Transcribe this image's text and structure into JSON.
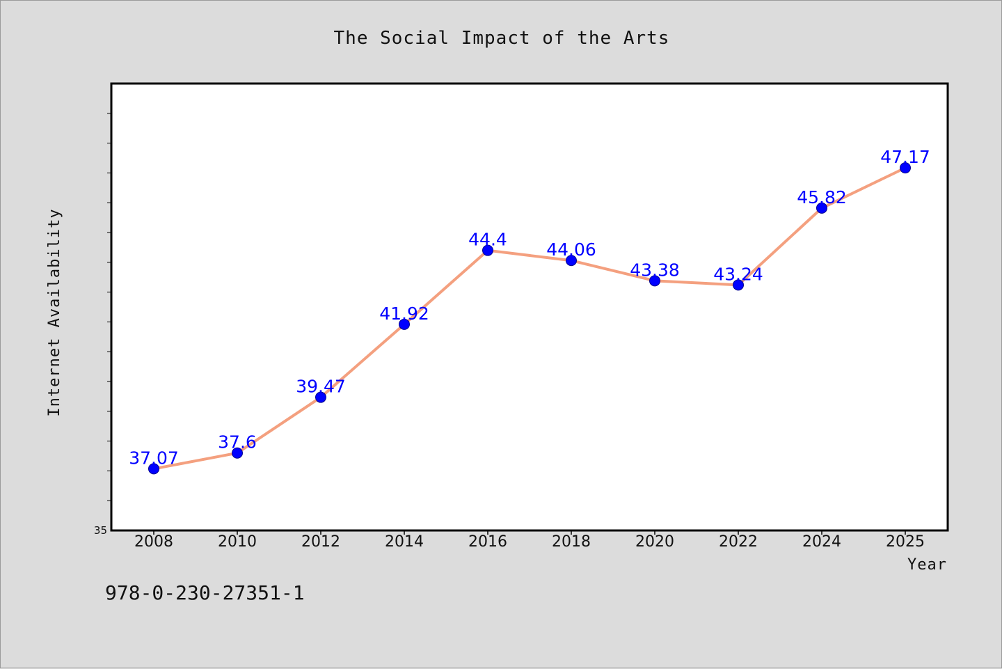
{
  "chart_data": {
    "type": "line",
    "title": "The Social Impact of the Arts",
    "xlabel": "Year",
    "ylabel": "Internet Availability",
    "categories": [
      "2008",
      "2010",
      "2012",
      "2014",
      "2016",
      "2018",
      "2020",
      "2022",
      "2024",
      "2025"
    ],
    "series": [
      {
        "values": [
          37.07,
          37.6,
          39.47,
          41.92,
          44.4,
          44.06,
          43.38,
          43.24,
          45.82,
          47.17
        ],
        "labels": [
          "37.07",
          "37.6",
          "39.47",
          "41.92",
          "44.4",
          "44.06",
          "43.38",
          "43.24",
          "45.82",
          "47.17"
        ]
      }
    ],
    "ylim": [
      35,
      50
    ],
    "y_tick_labels": [
      "35"
    ],
    "grid": false,
    "legend": "none"
  },
  "footer": {
    "isbn": "978-0-230-27351-1"
  },
  "colors": {
    "background": "#dcdcdc",
    "plot_background": "#ffffff",
    "line": "#f4a07f",
    "marker": "#0000ff",
    "data_label": "#0000ff"
  }
}
